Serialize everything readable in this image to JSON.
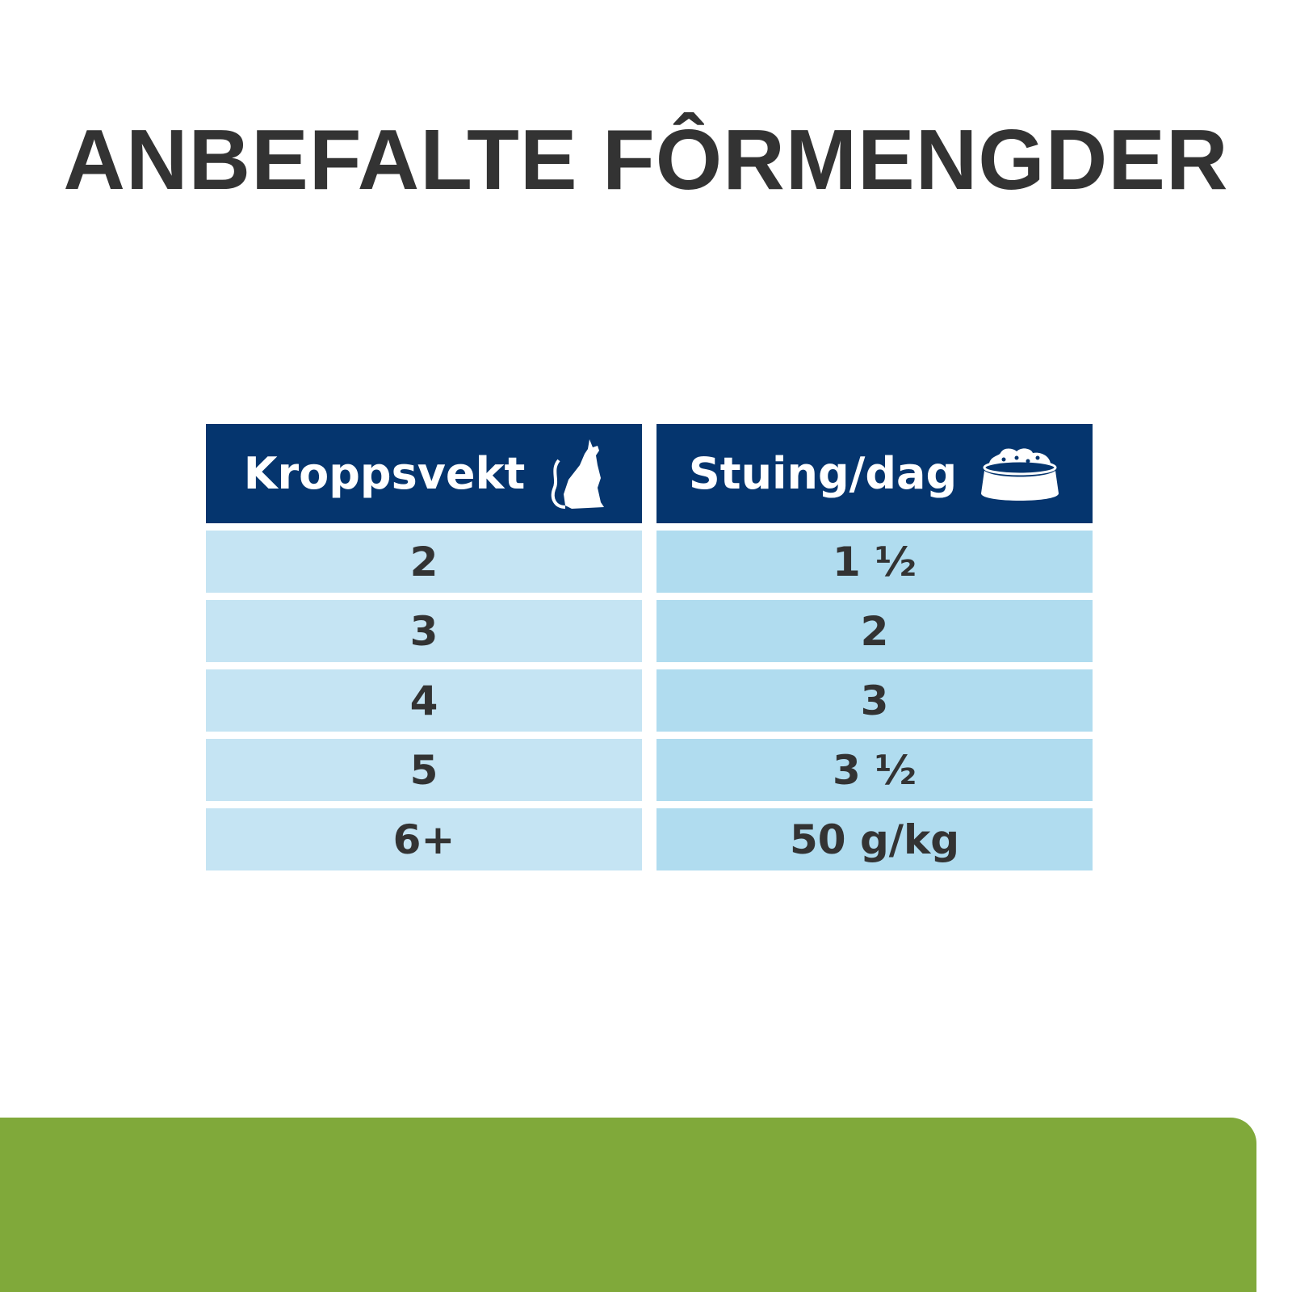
{
  "title": "ANBEFALTE FÔRMENGDER",
  "table": {
    "headers": [
      {
        "label": "Kroppsvekt",
        "icon": "cat-icon"
      },
      {
        "label": "Stuing/dag",
        "icon": "food-bowl-icon"
      }
    ],
    "rows": [
      [
        "2",
        "1 ½"
      ],
      [
        "3",
        "2"
      ],
      [
        "4",
        "3"
      ],
      [
        "5",
        "3 ½"
      ],
      [
        "6+",
        "50 g/kg"
      ]
    ]
  },
  "colors": {
    "header": "#05356e",
    "col1": "#c5e4f3",
    "col2": "#b0dcef",
    "accent_green": "#80a93a",
    "text": "#333333"
  }
}
